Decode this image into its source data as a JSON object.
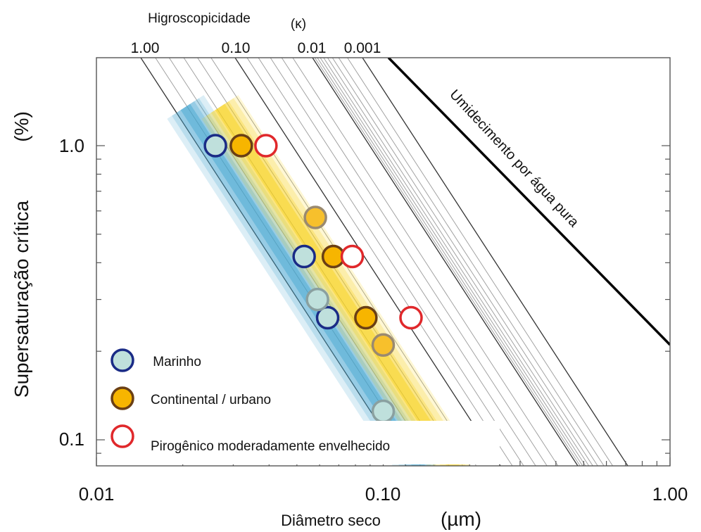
{
  "chart_data": {
    "type": "scatter",
    "xlabel": "Diâmetro seco",
    "xunit": "(µm)",
    "ylabel": "Supersaturação crítica",
    "yunit": "(%)",
    "top_axis_label": "Higroscopicidade",
    "top_axis_symbol": "(κ)",
    "x_scale": "log",
    "y_scale": "log",
    "xlim": [
      0.01,
      1.0
    ],
    "ylim": [
      0.08,
      2.0
    ],
    "x_ticks": [
      {
        "value": 0.01,
        "label": "0.01"
      },
      {
        "value": 0.1,
        "label": "0.10"
      },
      {
        "value": 1.0,
        "label": "1.00"
      }
    ],
    "y_ticks": [
      {
        "value": 0.1,
        "label": "0.1"
      },
      {
        "value": 1.0,
        "label": "1.0"
      }
    ],
    "top_ticks": [
      {
        "kappa": 1.0,
        "label": "1.00"
      },
      {
        "kappa": 0.1,
        "label": "0.10"
      },
      {
        "kappa": 0.01,
        "label": "0.01"
      },
      {
        "kappa": 0.001,
        "label": "0.001"
      }
    ],
    "kappa_lines": [
      1.0,
      0.7,
      0.5,
      0.35,
      0.25,
      0.18,
      0.1,
      0.07,
      0.05,
      0.035,
      0.025,
      0.018,
      0.01,
      0.009,
      0.008,
      0.007,
      0.006,
      0.005,
      0.004,
      0.003,
      0.002,
      0.001
    ],
    "pure_water_label": "Umidecimento por água pura",
    "bands": [
      {
        "name": "marine-band",
        "color": "#3fa3cf",
        "x_at_1pct": 0.025,
        "x_at_min": 0.112
      },
      {
        "name": "continental-band",
        "color": "#f7d117",
        "x_at_1pct": 0.033,
        "x_at_min": 0.155
      }
    ],
    "series": [
      {
        "name": "Marinho",
        "fill": "#bfe0dc",
        "stroke": "#1a2b86",
        "hollow": false,
        "points": [
          [
            0.026,
            1.0
          ],
          [
            0.053,
            0.42
          ],
          [
            0.064,
            0.26
          ]
        ]
      },
      {
        "name": "",
        "fill": "#bfe0dc",
        "stroke": "#8aa0a0",
        "hollow": false,
        "points": [
          [
            0.059,
            0.3
          ],
          [
            0.1,
            0.125
          ]
        ]
      },
      {
        "name": "Continental / urbano",
        "fill": "#f7b500",
        "stroke": "#6a3f15",
        "hollow": false,
        "points": [
          [
            0.032,
            1.0
          ],
          [
            0.067,
            0.42
          ],
          [
            0.087,
            0.26
          ]
        ]
      },
      {
        "name": "",
        "fill": "#f7c02c",
        "stroke": "#9a8a70",
        "hollow": false,
        "points": [
          [
            0.058,
            0.57
          ],
          [
            0.1,
            0.21
          ]
        ]
      },
      {
        "name": "Pirogênico moderadamente envelhecido",
        "fill": "#ffffff",
        "stroke": "#e0282b",
        "hollow": true,
        "points": [
          [
            0.039,
            1.0
          ],
          [
            0.078,
            0.42
          ],
          [
            0.125,
            0.26
          ]
        ]
      }
    ],
    "legend": [
      {
        "label": " Marinho",
        "fill": "#bfe0dc",
        "stroke": "#1a2b86"
      },
      {
        "label": "Continental / urbano",
        "fill": "#f7b500",
        "stroke": "#6a3f15"
      },
      {
        "label": "Pirogênico moderadamente envelhecido",
        "fill": "#ffffff",
        "stroke": "#e0282b"
      }
    ],
    "legend_position": "bottom-left",
    "grid": false
  }
}
